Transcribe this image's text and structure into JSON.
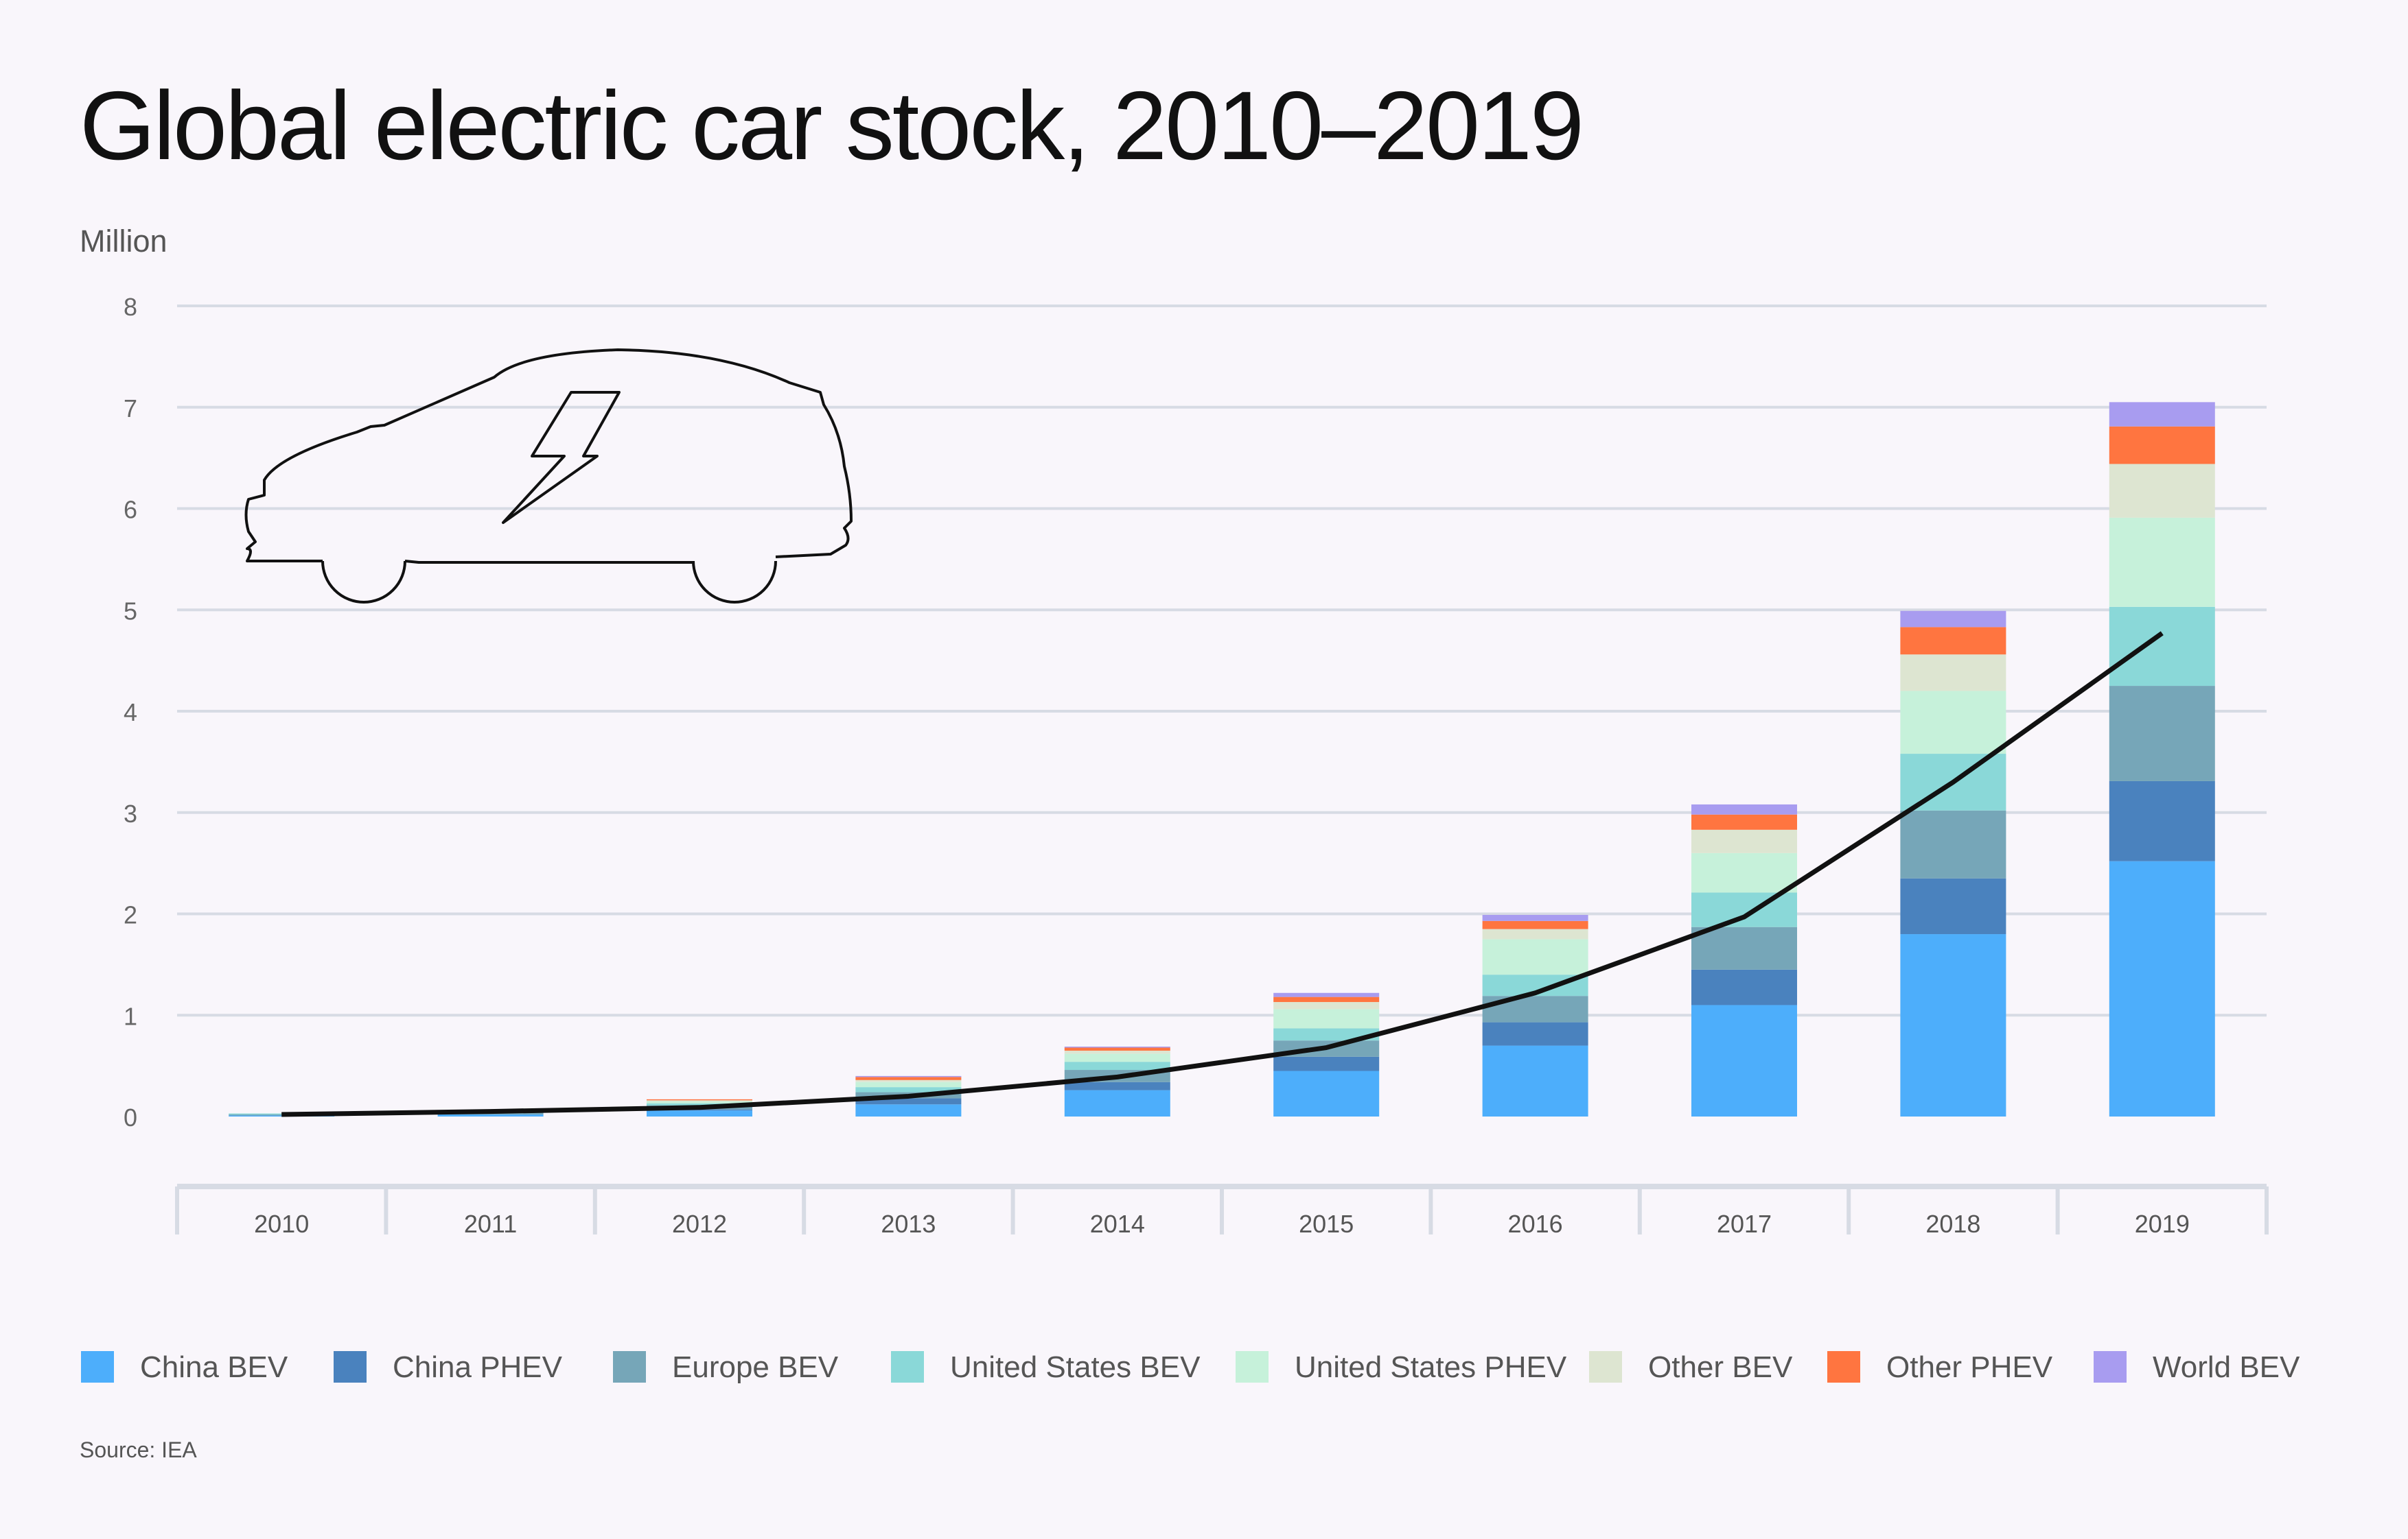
{
  "chart_data": {
    "type": "bar",
    "stacked": true,
    "title": "Global electric car stock, 2010–2019",
    "ylabel": "Million",
    "xlabel": "",
    "ylim": [
      0,
      8
    ],
    "yticks": [
      0,
      1,
      2,
      3,
      4,
      5,
      6,
      7,
      8
    ],
    "grid": true,
    "legend_position": "bottom",
    "categories": [
      "2010",
      "2011",
      "2012",
      "2013",
      "2014",
      "2015",
      "2016",
      "2017",
      "2018",
      "2019"
    ],
    "series": [
      {
        "name": "China BEV",
        "color": "#4daefb",
        "values": [
          0.01,
          0.02,
          0.06,
          0.12,
          0.26,
          0.45,
          0.7,
          1.1,
          1.8,
          2.52
        ]
      },
      {
        "name": "China PHEV",
        "color": "#4a82be",
        "values": [
          0.0,
          0.0,
          0.01,
          0.06,
          0.08,
          0.14,
          0.23,
          0.35,
          0.55,
          0.79
        ]
      },
      {
        "name": "Europe BEV",
        "color": "#76a6b8",
        "values": [
          0.01,
          0.02,
          0.04,
          0.06,
          0.12,
          0.16,
          0.26,
          0.42,
          0.67,
          0.94
        ]
      },
      {
        "name": "United States BEV",
        "color": "#8ad8d8",
        "values": [
          0.01,
          0.01,
          0.02,
          0.05,
          0.08,
          0.12,
          0.21,
          0.34,
          0.56,
          0.78
        ]
      },
      {
        "name": "United States PHEV",
        "color": "#c6f1da",
        "values": [
          0.0,
          0.01,
          0.02,
          0.05,
          0.08,
          0.19,
          0.35,
          0.39,
          0.62,
          0.88
        ]
      },
      {
        "name": "Other BEV",
        "color": "#dde5d1",
        "values": [
          0.0,
          0.0,
          0.01,
          0.02,
          0.03,
          0.07,
          0.1,
          0.23,
          0.36,
          0.53
        ]
      },
      {
        "name": "Other PHEV",
        "color": "#ff7540",
        "values": [
          0.0,
          0.0,
          0.01,
          0.03,
          0.03,
          0.05,
          0.08,
          0.15,
          0.27,
          0.37
        ]
      },
      {
        "name": "World BEV",
        "color": "#a89cf0",
        "values": [
          0.0,
          0.0,
          0.0,
          0.01,
          0.01,
          0.04,
          0.06,
          0.1,
          0.16,
          0.24
        ]
      }
    ],
    "line": {
      "values": [
        0.02,
        0.05,
        0.09,
        0.2,
        0.39,
        0.68,
        1.22,
        1.97,
        3.3,
        4.77
      ],
      "color": "#111111"
    },
    "source": "Source: IEA"
  }
}
